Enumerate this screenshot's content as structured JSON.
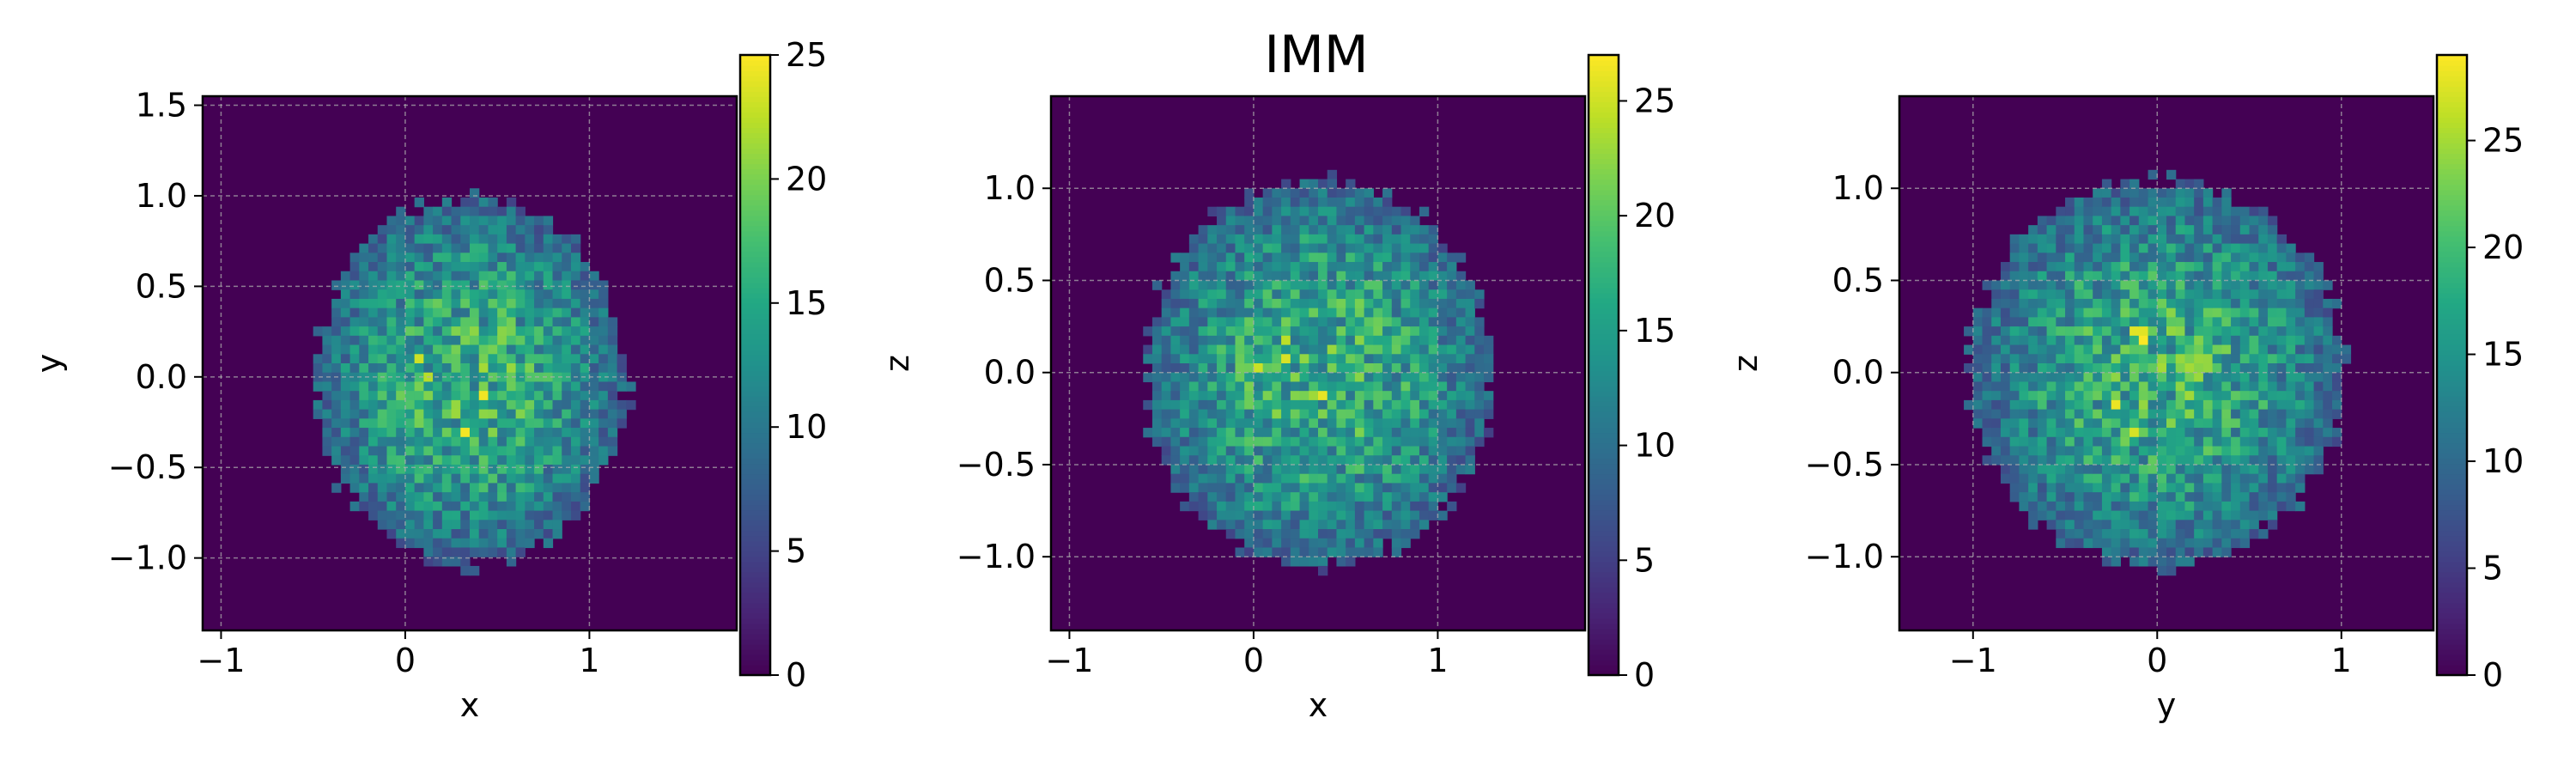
{
  "figure": {
    "title": "IMM",
    "colormap": "viridis"
  },
  "chart_data": [
    {
      "type": "heatmap",
      "title": "",
      "xlabel": "x",
      "ylabel": "y",
      "xlim": [
        -1.1,
        1.8
      ],
      "ylim": [
        -1.4,
        1.55
      ],
      "xticks": [
        -1,
        0,
        1
      ],
      "xtick_labels": [
        "−1",
        "0",
        "1"
      ],
      "yticks": [
        -1.0,
        -0.5,
        0.0,
        0.5,
        1.0,
        1.5
      ],
      "ytick_labels": [
        "−1.0",
        "−0.5",
        "0.0",
        "0.5",
        "1.0",
        "1.5"
      ],
      "grid": true,
      "colorbar": {
        "min": 0,
        "max": 25,
        "ticks": [
          0,
          5,
          10,
          15,
          20,
          25
        ],
        "tick_labels": [
          "0",
          "5",
          "10",
          "15",
          "20",
          "25"
        ]
      },
      "distribution": {
        "center": [
          0.35,
          -0.02
        ],
        "radius": [
          0.85,
          1.02
        ],
        "peak_count": 25
      }
    },
    {
      "type": "heatmap",
      "title": "IMM",
      "xlabel": "x",
      "ylabel": "z",
      "xlim": [
        -1.1,
        1.8
      ],
      "ylim": [
        -1.4,
        1.5
      ],
      "xticks": [
        -1,
        0,
        1
      ],
      "xtick_labels": [
        "−1",
        "0",
        "1"
      ],
      "yticks": [
        -1.0,
        -0.5,
        0.0,
        0.5,
        1.0
      ],
      "ytick_labels": [
        "−1.0",
        "−0.5",
        "0.0",
        "0.5",
        "1.0"
      ],
      "grid": true,
      "colorbar": {
        "min": 0,
        "max": 27,
        "ticks": [
          0,
          5,
          10,
          15,
          20,
          25
        ],
        "tick_labels": [
          "0",
          "5",
          "10",
          "15",
          "20",
          "25"
        ]
      },
      "distribution": {
        "center": [
          0.35,
          0.0
        ],
        "radius": [
          0.95,
          1.05
        ],
        "peak_count": 27
      }
    },
    {
      "type": "heatmap",
      "title": "",
      "xlabel": "y",
      "ylabel": "z",
      "xlim": [
        -1.4,
        1.5
      ],
      "ylim": [
        -1.4,
        1.5
      ],
      "xticks": [
        -1,
        0,
        1
      ],
      "xtick_labels": [
        "−1",
        "0",
        "1"
      ],
      "yticks": [
        -1.0,
        -0.5,
        0.0,
        0.5,
        1.0
      ],
      "ytick_labels": [
        "−1.0",
        "−0.5",
        "0.0",
        "0.5",
        "1.0"
      ],
      "grid": true,
      "colorbar": {
        "min": 0,
        "max": 29,
        "ticks": [
          0,
          5,
          10,
          15,
          20,
          25
        ],
        "tick_labels": [
          "0",
          "5",
          "10",
          "15",
          "20",
          "25"
        ]
      },
      "distribution": {
        "center": [
          0.0,
          0.0
        ],
        "radius": [
          1.02,
          1.05
        ],
        "peak_count": 29
      }
    }
  ]
}
